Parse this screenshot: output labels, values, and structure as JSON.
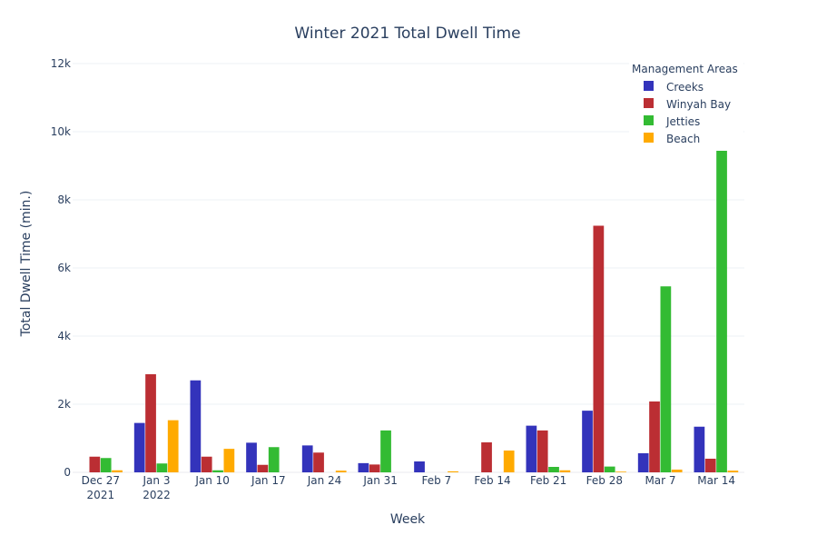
{
  "chart_data": {
    "type": "bar",
    "title": "Winter 2021 Total Dwell Time",
    "xlabel": "Week",
    "ylabel": "Total Dwell Time (min.)",
    "ylim": [
      0,
      12000
    ],
    "yticks": [
      "0",
      "2k",
      "4k",
      "6k",
      "8k",
      "10k",
      "12k"
    ],
    "categories": [
      [
        "Dec 27",
        "2021"
      ],
      [
        "Jan 3",
        "2022"
      ],
      [
        "Jan 10"
      ],
      [
        "Jan 17"
      ],
      [
        "Jan 24"
      ],
      [
        "Jan 31"
      ],
      [
        "Feb 7"
      ],
      [
        "Feb 14"
      ],
      [
        "Feb 21"
      ],
      [
        "Feb 28"
      ],
      [
        "Mar 7"
      ],
      [
        "Mar 14"
      ]
    ],
    "legend_title": "Management Areas",
    "legend_position": "top-right",
    "grid": true,
    "series": [
      {
        "name": "Creeks",
        "color": "#3333bb",
        "values": [
          0,
          1450,
          2700,
          870,
          790,
          270,
          320,
          0,
          1370,
          1810,
          560,
          1340
        ]
      },
      {
        "name": "Winyah Bay",
        "color": "#bb2e33",
        "values": [
          460,
          2880,
          460,
          220,
          580,
          230,
          0,
          880,
          1230,
          7240,
          2080,
          400
        ]
      },
      {
        "name": "Jetties",
        "color": "#33bb33",
        "values": [
          420,
          260,
          60,
          740,
          0,
          1230,
          0,
          0,
          160,
          170,
          5460,
          9440
        ]
      },
      {
        "name": "Beach",
        "color": "#ffaa00",
        "values": [
          60,
          1530,
          690,
          0,
          50,
          0,
          30,
          640,
          60,
          20,
          80,
          50
        ]
      }
    ]
  }
}
